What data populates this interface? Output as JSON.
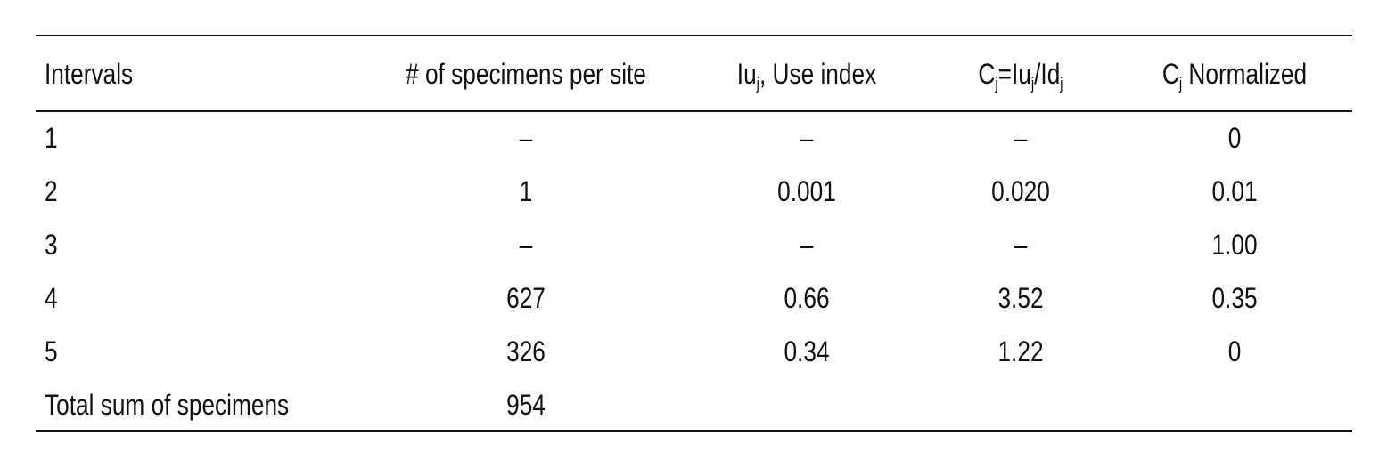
{
  "table": {
    "header": [
      [
        {
          "text": "Intervals"
        }
      ],
      [
        {
          "text": "# of specimens per site"
        }
      ],
      [
        {
          "text": "Iu"
        },
        {
          "sub": "j"
        },
        {
          "text": ", Use index"
        }
      ],
      [
        {
          "text": "C"
        },
        {
          "sub": "j"
        },
        {
          "text": "=Iu"
        },
        {
          "sub": "j"
        },
        {
          "text": "/Id"
        },
        {
          "sub": "j"
        }
      ],
      [
        {
          "text": "C"
        },
        {
          "sub": "j"
        },
        {
          "text": " Normalized"
        }
      ]
    ],
    "rows": [
      [
        "1",
        "–",
        "–",
        "–",
        "0"
      ],
      [
        "2",
        "1",
        "0.001",
        "0.020",
        "0.01"
      ],
      [
        "3",
        "–",
        "–",
        "–",
        "1.00"
      ],
      [
        "4",
        "627",
        "0.66",
        "3.52",
        "0.35"
      ],
      [
        "5",
        "326",
        "0.34",
        "1.22",
        "0"
      ],
      [
        "Total sum of specimens",
        "954"
      ]
    ]
  }
}
